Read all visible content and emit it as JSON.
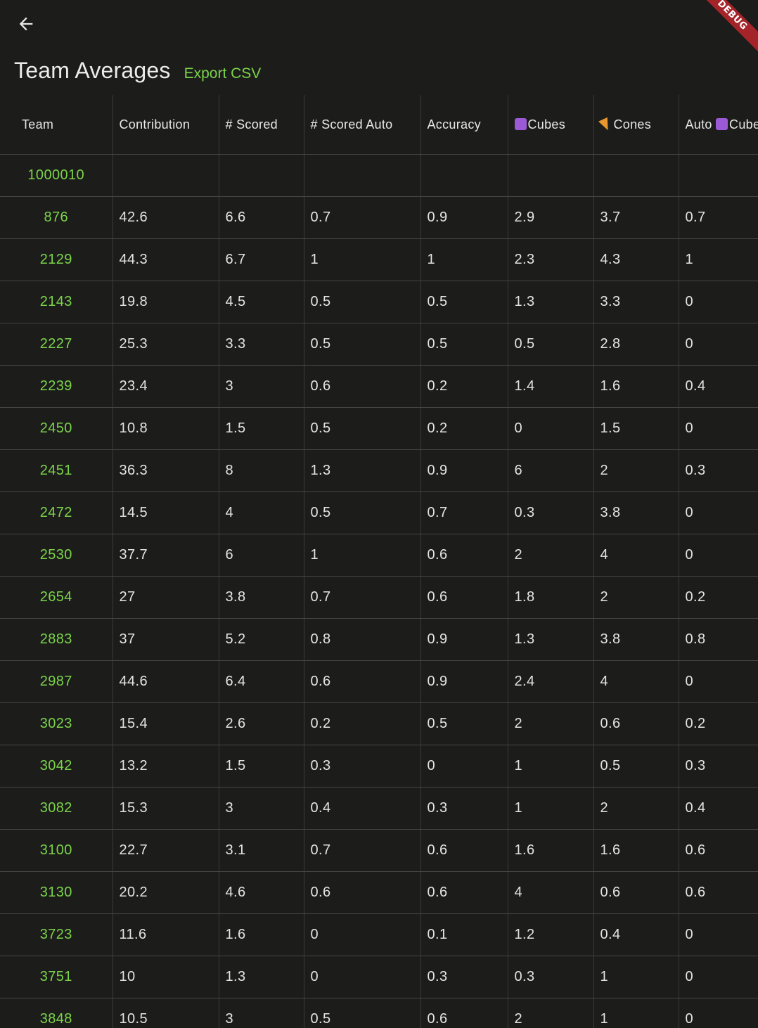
{
  "app": {
    "debug_label": "DEBUG"
  },
  "header": {
    "title": "Team Averages",
    "export_label": "Export CSV",
    "back_icon": "arrow-left-icon"
  },
  "colors": {
    "background": "#1c1d1b",
    "accent": "#7bd349",
    "debug_banner": "#a5242a",
    "cube": "#9b59d6",
    "cone": "#e9962f"
  },
  "table": {
    "columns": [
      {
        "label": "Team"
      },
      {
        "label": "Contribution"
      },
      {
        "label": "# Scored"
      },
      {
        "label": "# Scored Auto"
      },
      {
        "label": "Accuracy"
      },
      {
        "label": "Cubes",
        "icon": "cube-icon"
      },
      {
        "label": "Cones",
        "icon": "cone-icon"
      },
      {
        "label": "Auto Cube",
        "icon": "cube-icon"
      }
    ],
    "rows": [
      [
        "1000010",
        "",
        "",
        "",
        "",
        "",
        "",
        ""
      ],
      [
        "876",
        "42.6",
        "6.6",
        "0.7",
        "0.9",
        "2.9",
        "3.7",
        "0.7"
      ],
      [
        "2129",
        "44.3",
        "6.7",
        "1",
        "1",
        "2.3",
        "4.3",
        "1"
      ],
      [
        "2143",
        "19.8",
        "4.5",
        "0.5",
        "0.5",
        "1.3",
        "3.3",
        "0"
      ],
      [
        "2227",
        "25.3",
        "3.3",
        "0.5",
        "0.5",
        "0.5",
        "2.8",
        "0"
      ],
      [
        "2239",
        "23.4",
        "3",
        "0.6",
        "0.2",
        "1.4",
        "1.6",
        "0.4"
      ],
      [
        "2450",
        "10.8",
        "1.5",
        "0.5",
        "0.2",
        "0",
        "1.5",
        "0"
      ],
      [
        "2451",
        "36.3",
        "8",
        "1.3",
        "0.9",
        "6",
        "2",
        "0.3"
      ],
      [
        "2472",
        "14.5",
        "4",
        "0.5",
        "0.7",
        "0.3",
        "3.8",
        "0"
      ],
      [
        "2530",
        "37.7",
        "6",
        "1",
        "0.6",
        "2",
        "4",
        "0"
      ],
      [
        "2654",
        "27",
        "3.8",
        "0.7",
        "0.6",
        "1.8",
        "2",
        "0.2"
      ],
      [
        "2883",
        "37",
        "5.2",
        "0.8",
        "0.9",
        "1.3",
        "3.8",
        "0.8"
      ],
      [
        "2987",
        "44.6",
        "6.4",
        "0.6",
        "0.9",
        "2.4",
        "4",
        "0"
      ],
      [
        "3023",
        "15.4",
        "2.6",
        "0.2",
        "0.5",
        "2",
        "0.6",
        "0.2"
      ],
      [
        "3042",
        "13.2",
        "1.5",
        "0.3",
        "0",
        "1",
        "0.5",
        "0.3"
      ],
      [
        "3082",
        "15.3",
        "3",
        "0.4",
        "0.3",
        "1",
        "2",
        "0.4"
      ],
      [
        "3100",
        "22.7",
        "3.1",
        "0.7",
        "0.6",
        "1.6",
        "1.6",
        "0.6"
      ],
      [
        "3130",
        "20.2",
        "4.6",
        "0.6",
        "0.6",
        "4",
        "0.6",
        "0.6"
      ],
      [
        "3723",
        "11.6",
        "1.6",
        "0",
        "0.1",
        "1.2",
        "0.4",
        "0"
      ],
      [
        "3751",
        "10",
        "1.3",
        "0",
        "0.3",
        "0.3",
        "1",
        "0"
      ],
      [
        "3848",
        "10.5",
        "3",
        "0.5",
        "0.6",
        "2",
        "1",
        "0"
      ]
    ]
  }
}
